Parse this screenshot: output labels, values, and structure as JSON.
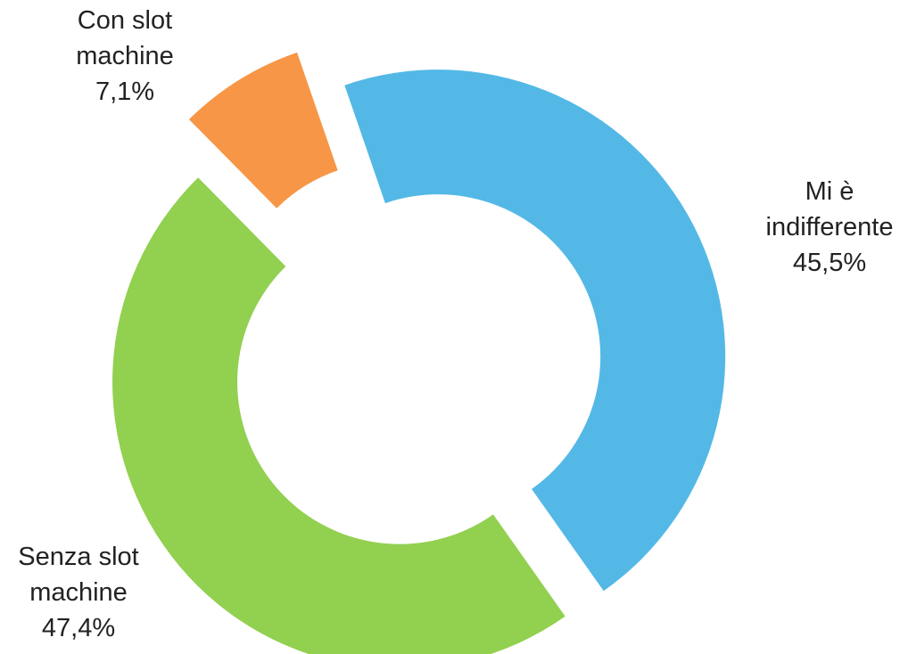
{
  "chart_data": {
    "type": "pie",
    "categories": [
      "Mi è indifferente",
      "Senza slot machine",
      "Con slot machine"
    ],
    "values": [
      45.5,
      47.4,
      7.1
    ],
    "value_labels": [
      "45,5%",
      "47,4%",
      "7,1%"
    ],
    "colors": [
      "#53b8e6",
      "#92d050",
      "#f79646"
    ]
  }
}
